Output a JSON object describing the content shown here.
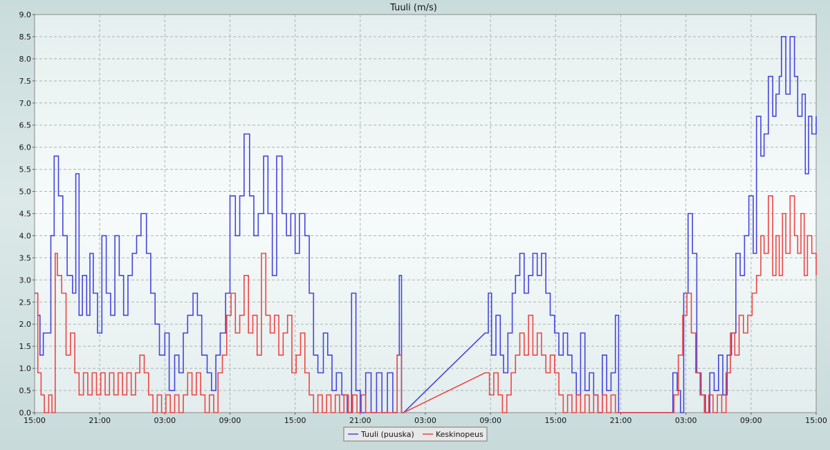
{
  "chart_data": {
    "type": "line",
    "title": "Tuuli (m/s)",
    "xlabel": "",
    "ylabel": "",
    "ylim": [
      0,
      9
    ],
    "yticks": [
      "0.0",
      "0.5",
      "1.0",
      "1.5",
      "2.0",
      "2.5",
      "3.0",
      "3.5",
      "4.0",
      "4.5",
      "5.0",
      "5.5",
      "6.0",
      "6.5",
      "7.0",
      "7.5",
      "8.0",
      "8.5",
      "9.0"
    ],
    "xlim": [
      0,
      72
    ],
    "xticks": [
      {
        "x": 0,
        "label": "15:00"
      },
      {
        "x": 6,
        "label": "21:00"
      },
      {
        "x": 12,
        "label": "03:00"
      },
      {
        "x": 18,
        "label": "09:00"
      },
      {
        "x": 24,
        "label": "15:00"
      },
      {
        "x": 30,
        "label": "21:00"
      },
      {
        "x": 36,
        "label": "03:00"
      },
      {
        "x": 42,
        "label": "09:00"
      },
      {
        "x": 48,
        "label": "15:00"
      },
      {
        "x": 54,
        "label": "21:00"
      },
      {
        "x": 60,
        "label": "03:00"
      },
      {
        "x": 66,
        "label": "09:00"
      },
      {
        "x": 72,
        "label": "15:00"
      }
    ],
    "grid": true,
    "legend_position": "bottom-center",
    "series": [
      {
        "name": "Tuuli (puuska)",
        "color": "#4444dd",
        "points": [
          [
            0,
            2.7
          ],
          [
            0.3,
            2.2
          ],
          [
            0.5,
            1.3
          ],
          [
            0.8,
            1.8
          ],
          [
            1.5,
            4.0
          ],
          [
            1.8,
            5.8
          ],
          [
            2.2,
            4.9
          ],
          [
            2.6,
            4.0
          ],
          [
            3.0,
            3.1
          ],
          [
            3.5,
            2.7
          ],
          [
            3.8,
            5.4
          ],
          [
            4.1,
            2.2
          ],
          [
            4.4,
            3.1
          ],
          [
            4.8,
            2.2
          ],
          [
            5.1,
            3.6
          ],
          [
            5.4,
            2.7
          ],
          [
            5.8,
            1.8
          ],
          [
            6.2,
            4.0
          ],
          [
            6.6,
            2.7
          ],
          [
            7.0,
            2.2
          ],
          [
            7.4,
            4.0
          ],
          [
            7.8,
            3.1
          ],
          [
            8.2,
            2.2
          ],
          [
            8.6,
            3.1
          ],
          [
            9.0,
            3.6
          ],
          [
            9.4,
            4.0
          ],
          [
            9.8,
            4.5
          ],
          [
            10.3,
            3.6
          ],
          [
            10.7,
            2.7
          ],
          [
            11.1,
            2.0
          ],
          [
            11.5,
            1.3
          ],
          [
            12.0,
            1.8
          ],
          [
            12.4,
            0.5
          ],
          [
            12.9,
            1.3
          ],
          [
            13.3,
            0.9
          ],
          [
            13.7,
            1.8
          ],
          [
            14.1,
            2.2
          ],
          [
            14.6,
            2.7
          ],
          [
            15.0,
            2.2
          ],
          [
            15.4,
            1.3
          ],
          [
            15.9,
            0.9
          ],
          [
            16.3,
            0.5
          ],
          [
            16.7,
            1.3
          ],
          [
            17.1,
            1.8
          ],
          [
            17.6,
            2.7
          ],
          [
            18.0,
            4.9
          ],
          [
            18.5,
            4.0
          ],
          [
            18.9,
            4.9
          ],
          [
            19.3,
            6.3
          ],
          [
            19.8,
            4.9
          ],
          [
            20.2,
            4.0
          ],
          [
            20.6,
            4.5
          ],
          [
            21.1,
            5.8
          ],
          [
            21.5,
            4.5
          ],
          [
            21.9,
            3.1
          ],
          [
            22.3,
            5.8
          ],
          [
            22.8,
            4.5
          ],
          [
            23.2,
            4.0
          ],
          [
            23.6,
            4.5
          ],
          [
            24.0,
            3.6
          ],
          [
            24.4,
            4.5
          ],
          [
            24.9,
            4.0
          ],
          [
            25.3,
            2.7
          ],
          [
            25.7,
            1.3
          ],
          [
            26.1,
            0.9
          ],
          [
            26.6,
            1.8
          ],
          [
            27.0,
            1.3
          ],
          [
            27.4,
            0.5
          ],
          [
            27.8,
            0.9
          ],
          [
            28.3,
            0.4
          ],
          [
            28.8,
            0.0
          ],
          [
            29.2,
            2.7
          ],
          [
            29.6,
            0.5
          ],
          [
            30.0,
            0.0
          ],
          [
            30.5,
            0.9
          ],
          [
            31.0,
            0.0
          ],
          [
            31.5,
            0.9
          ],
          [
            32.0,
            0.0
          ],
          [
            32.5,
            0.9
          ],
          [
            33.0,
            0.0
          ],
          [
            33.4,
            1.3
          ],
          [
            33.6,
            3.1
          ],
          [
            33.8,
            0.0
          ],
          [
            34.0,
            0.0
          ],
          [
            41.5,
            1.8
          ],
          [
            41.8,
            2.7
          ],
          [
            42.1,
            1.3
          ],
          [
            42.5,
            2.2
          ],
          [
            42.9,
            1.3
          ],
          [
            43.2,
            0.9
          ],
          [
            43.6,
            1.8
          ],
          [
            44.0,
            2.7
          ],
          [
            44.3,
            3.1
          ],
          [
            44.7,
            3.6
          ],
          [
            45.1,
            2.7
          ],
          [
            45.5,
            3.1
          ],
          [
            45.9,
            3.6
          ],
          [
            46.3,
            3.1
          ],
          [
            46.7,
            3.6
          ],
          [
            47.1,
            2.7
          ],
          [
            47.5,
            2.2
          ],
          [
            47.9,
            1.8
          ],
          [
            48.3,
            1.3
          ],
          [
            48.7,
            1.8
          ],
          [
            49.1,
            1.3
          ],
          [
            49.5,
            0.9
          ],
          [
            49.9,
            0.4
          ],
          [
            50.3,
            1.8
          ],
          [
            50.7,
            0.5
          ],
          [
            51.1,
            0.9
          ],
          [
            51.5,
            0.4
          ],
          [
            51.9,
            0.0
          ],
          [
            52.3,
            1.3
          ],
          [
            52.7,
            0.5
          ],
          [
            53.1,
            0.9
          ],
          [
            53.5,
            2.2
          ],
          [
            53.8,
            0.0
          ],
          [
            54.5,
            0.0
          ],
          [
            58.5,
            0.0
          ],
          [
            58.8,
            0.9
          ],
          [
            59.2,
            0.5
          ],
          [
            59.5,
            0.0
          ],
          [
            59.8,
            2.7
          ],
          [
            60.2,
            4.5
          ],
          [
            60.6,
            3.6
          ],
          [
            61.0,
            0.9
          ],
          [
            61.4,
            0.4
          ],
          [
            61.8,
            0.0
          ],
          [
            62.2,
            0.9
          ],
          [
            62.6,
            0.5
          ],
          [
            63.0,
            1.3
          ],
          [
            63.4,
            0.4
          ],
          [
            63.8,
            1.3
          ],
          [
            64.2,
            1.8
          ],
          [
            64.6,
            3.6
          ],
          [
            65.0,
            3.1
          ],
          [
            65.4,
            4.0
          ],
          [
            65.8,
            4.9
          ],
          [
            66.2,
            3.6
          ],
          [
            66.5,
            6.7
          ],
          [
            66.9,
            5.8
          ],
          [
            67.2,
            6.3
          ],
          [
            67.6,
            7.6
          ],
          [
            68.0,
            6.7
          ],
          [
            68.3,
            7.2
          ],
          [
            68.6,
            7.6
          ],
          [
            68.8,
            8.5
          ],
          [
            69.2,
            7.2
          ],
          [
            69.6,
            8.5
          ],
          [
            70.0,
            7.6
          ],
          [
            70.3,
            6.7
          ],
          [
            70.7,
            7.2
          ],
          [
            71.0,
            5.4
          ],
          [
            71.3,
            6.7
          ],
          [
            71.6,
            6.3
          ],
          [
            72.0,
            6.7
          ]
        ]
      },
      {
        "name": "Keskinopeus",
        "color": "#ee4444",
        "points": [
          [
            0,
            2.7
          ],
          [
            0.3,
            0.9
          ],
          [
            0.6,
            0.4
          ],
          [
            0.9,
            0.0
          ],
          [
            1.3,
            0.4
          ],
          [
            1.6,
            0.0
          ],
          [
            1.9,
            3.6
          ],
          [
            2.1,
            3.1
          ],
          [
            2.5,
            2.7
          ],
          [
            2.9,
            1.3
          ],
          [
            3.3,
            1.8
          ],
          [
            3.7,
            0.9
          ],
          [
            4.1,
            0.4
          ],
          [
            4.5,
            0.9
          ],
          [
            4.9,
            0.4
          ],
          [
            5.3,
            0.9
          ],
          [
            5.7,
            0.4
          ],
          [
            6.1,
            0.9
          ],
          [
            6.5,
            0.4
          ],
          [
            6.9,
            0.9
          ],
          [
            7.3,
            0.4
          ],
          [
            7.7,
            0.9
          ],
          [
            8.1,
            0.4
          ],
          [
            8.5,
            0.9
          ],
          [
            8.9,
            0.4
          ],
          [
            9.3,
            0.9
          ],
          [
            9.7,
            1.3
          ],
          [
            10.1,
            0.9
          ],
          [
            10.5,
            0.4
          ],
          [
            10.9,
            0.0
          ],
          [
            11.3,
            0.4
          ],
          [
            11.7,
            0.0
          ],
          [
            12.1,
            0.4
          ],
          [
            12.5,
            0.0
          ],
          [
            12.9,
            0.4
          ],
          [
            13.3,
            0.0
          ],
          [
            13.7,
            0.4
          ],
          [
            14.1,
            0.9
          ],
          [
            14.5,
            0.4
          ],
          [
            14.9,
            0.9
          ],
          [
            15.3,
            0.4
          ],
          [
            15.7,
            0.0
          ],
          [
            16.1,
            0.4
          ],
          [
            16.5,
            0.0
          ],
          [
            16.9,
            0.9
          ],
          [
            17.3,
            1.3
          ],
          [
            17.7,
            2.2
          ],
          [
            18.1,
            2.7
          ],
          [
            18.5,
            1.8
          ],
          [
            18.9,
            2.2
          ],
          [
            19.3,
            3.1
          ],
          [
            19.7,
            1.8
          ],
          [
            20.1,
            2.2
          ],
          [
            20.5,
            1.3
          ],
          [
            20.9,
            3.6
          ],
          [
            21.3,
            2.2
          ],
          [
            21.7,
            1.8
          ],
          [
            22.1,
            2.2
          ],
          [
            22.5,
            1.3
          ],
          [
            22.9,
            1.8
          ],
          [
            23.3,
            2.2
          ],
          [
            23.7,
            0.9
          ],
          [
            24.1,
            1.3
          ],
          [
            24.5,
            1.8
          ],
          [
            24.9,
            0.9
          ],
          [
            25.3,
            0.4
          ],
          [
            25.7,
            0.0
          ],
          [
            26.1,
            0.4
          ],
          [
            26.5,
            0.0
          ],
          [
            26.9,
            0.4
          ],
          [
            27.3,
            0.0
          ],
          [
            27.7,
            0.4
          ],
          [
            28.1,
            0.0
          ],
          [
            28.5,
            0.4
          ],
          [
            28.9,
            0.0
          ],
          [
            29.3,
            0.4
          ],
          [
            29.7,
            0.0
          ],
          [
            30.1,
            0.4
          ],
          [
            30.5,
            0.0
          ],
          [
            33.4,
            1.3
          ],
          [
            33.8,
            0.0
          ],
          [
            34.0,
            0.0
          ],
          [
            41.5,
            0.9
          ],
          [
            41.9,
            0.4
          ],
          [
            42.3,
            0.9
          ],
          [
            42.7,
            0.4
          ],
          [
            43.1,
            0.0
          ],
          [
            43.5,
            0.4
          ],
          [
            43.9,
            0.9
          ],
          [
            44.3,
            1.3
          ],
          [
            44.7,
            1.8
          ],
          [
            45.1,
            1.3
          ],
          [
            45.5,
            2.2
          ],
          [
            45.9,
            1.3
          ],
          [
            46.3,
            1.8
          ],
          [
            46.7,
            1.3
          ],
          [
            47.1,
            0.9
          ],
          [
            47.5,
            1.3
          ],
          [
            47.9,
            0.9
          ],
          [
            48.3,
            0.4
          ],
          [
            48.7,
            0.0
          ],
          [
            49.1,
            0.4
          ],
          [
            49.5,
            0.0
          ],
          [
            49.9,
            0.4
          ],
          [
            50.3,
            0.0
          ],
          [
            50.7,
            0.4
          ],
          [
            51.1,
            0.0
          ],
          [
            51.5,
            0.4
          ],
          [
            51.9,
            0.0
          ],
          [
            52.3,
            0.4
          ],
          [
            52.7,
            0.0
          ],
          [
            53.1,
            0.4
          ],
          [
            53.5,
            0.0
          ],
          [
            54.5,
            0.0
          ],
          [
            58.5,
            0.0
          ],
          [
            58.9,
            0.4
          ],
          [
            59.3,
            1.3
          ],
          [
            59.7,
            2.2
          ],
          [
            60.1,
            2.7
          ],
          [
            60.5,
            1.8
          ],
          [
            60.9,
            0.9
          ],
          [
            61.3,
            0.4
          ],
          [
            61.7,
            0.0
          ],
          [
            62.1,
            0.4
          ],
          [
            62.5,
            0.0
          ],
          [
            62.9,
            0.4
          ],
          [
            63.3,
            0.0
          ],
          [
            63.7,
            0.9
          ],
          [
            64.1,
            1.8
          ],
          [
            64.5,
            1.3
          ],
          [
            64.9,
            2.2
          ],
          [
            65.3,
            1.8
          ],
          [
            65.7,
            2.2
          ],
          [
            66.1,
            2.7
          ],
          [
            66.5,
            3.1
          ],
          [
            66.9,
            4.0
          ],
          [
            67.2,
            3.6
          ],
          [
            67.6,
            4.9
          ],
          [
            68.0,
            3.1
          ],
          [
            68.3,
            4.0
          ],
          [
            68.6,
            3.1
          ],
          [
            68.9,
            4.5
          ],
          [
            69.2,
            3.6
          ],
          [
            69.6,
            4.9
          ],
          [
            70.0,
            4.0
          ],
          [
            70.3,
            3.6
          ],
          [
            70.6,
            4.5
          ],
          [
            70.9,
            3.1
          ],
          [
            71.2,
            4.0
          ],
          [
            71.6,
            3.6
          ],
          [
            72.0,
            3.1
          ]
        ]
      }
    ]
  }
}
